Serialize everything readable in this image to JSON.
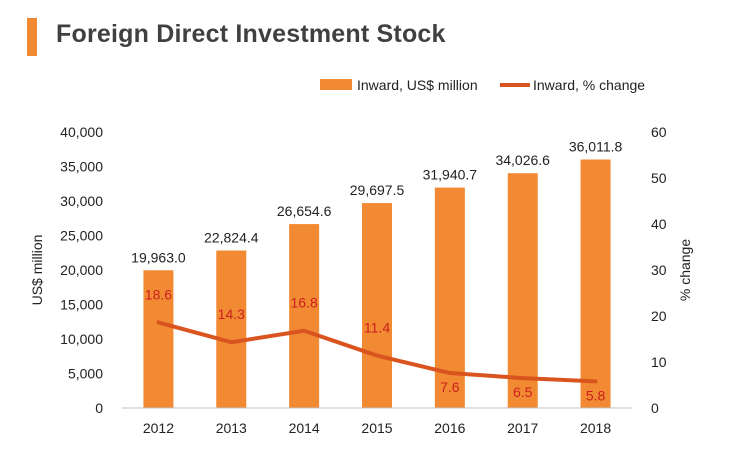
{
  "title": "Foreign Direct Investment Stock",
  "colors": {
    "bar": "#f28a33",
    "line": "#d9541e",
    "pct_label": "#cc1f1f",
    "text": "#222222",
    "title_bar": "#f28a33"
  },
  "chart_data": {
    "type": "bar",
    "title": "Foreign Direct Investment Stock",
    "categories": [
      "2012",
      "2013",
      "2014",
      "2015",
      "2016",
      "2017",
      "2018"
    ],
    "series": [
      {
        "name": "Inward, US$ million",
        "type": "bar",
        "axis": "left",
        "values": [
          19963.0,
          22824.4,
          26654.6,
          29697.5,
          31940.7,
          34026.6,
          36011.8
        ],
        "labels": [
          "19,963.0",
          "22,824.4",
          "26,654.6",
          "29,697.5",
          "31,940.7",
          "34,026.6",
          "36,011.8"
        ]
      },
      {
        "name": "Inward, % change",
        "type": "line",
        "axis": "right",
        "values": [
          18.6,
          14.3,
          16.8,
          11.4,
          7.6,
          6.5,
          5.8
        ],
        "labels": [
          "18.6",
          "14.3",
          "16.8",
          "11.4",
          "7.6",
          "6.5",
          "5.8"
        ]
      }
    ],
    "ylabel": "US$ million",
    "ylabel_right": "% change",
    "ylim": [
      0,
      40000
    ],
    "ylim_right": [
      0,
      60
    ],
    "yticks": [
      "0",
      "5,000",
      "10,000",
      "15,000",
      "20,000",
      "25,000",
      "30,000",
      "35,000",
      "40,000"
    ],
    "yticks_right": [
      "0",
      "10",
      "20",
      "30",
      "40",
      "50",
      "60"
    ],
    "legend": {
      "position": "top-right",
      "entries": [
        "Inward, US$ million",
        "Inward, % change"
      ]
    },
    "grid": false
  }
}
